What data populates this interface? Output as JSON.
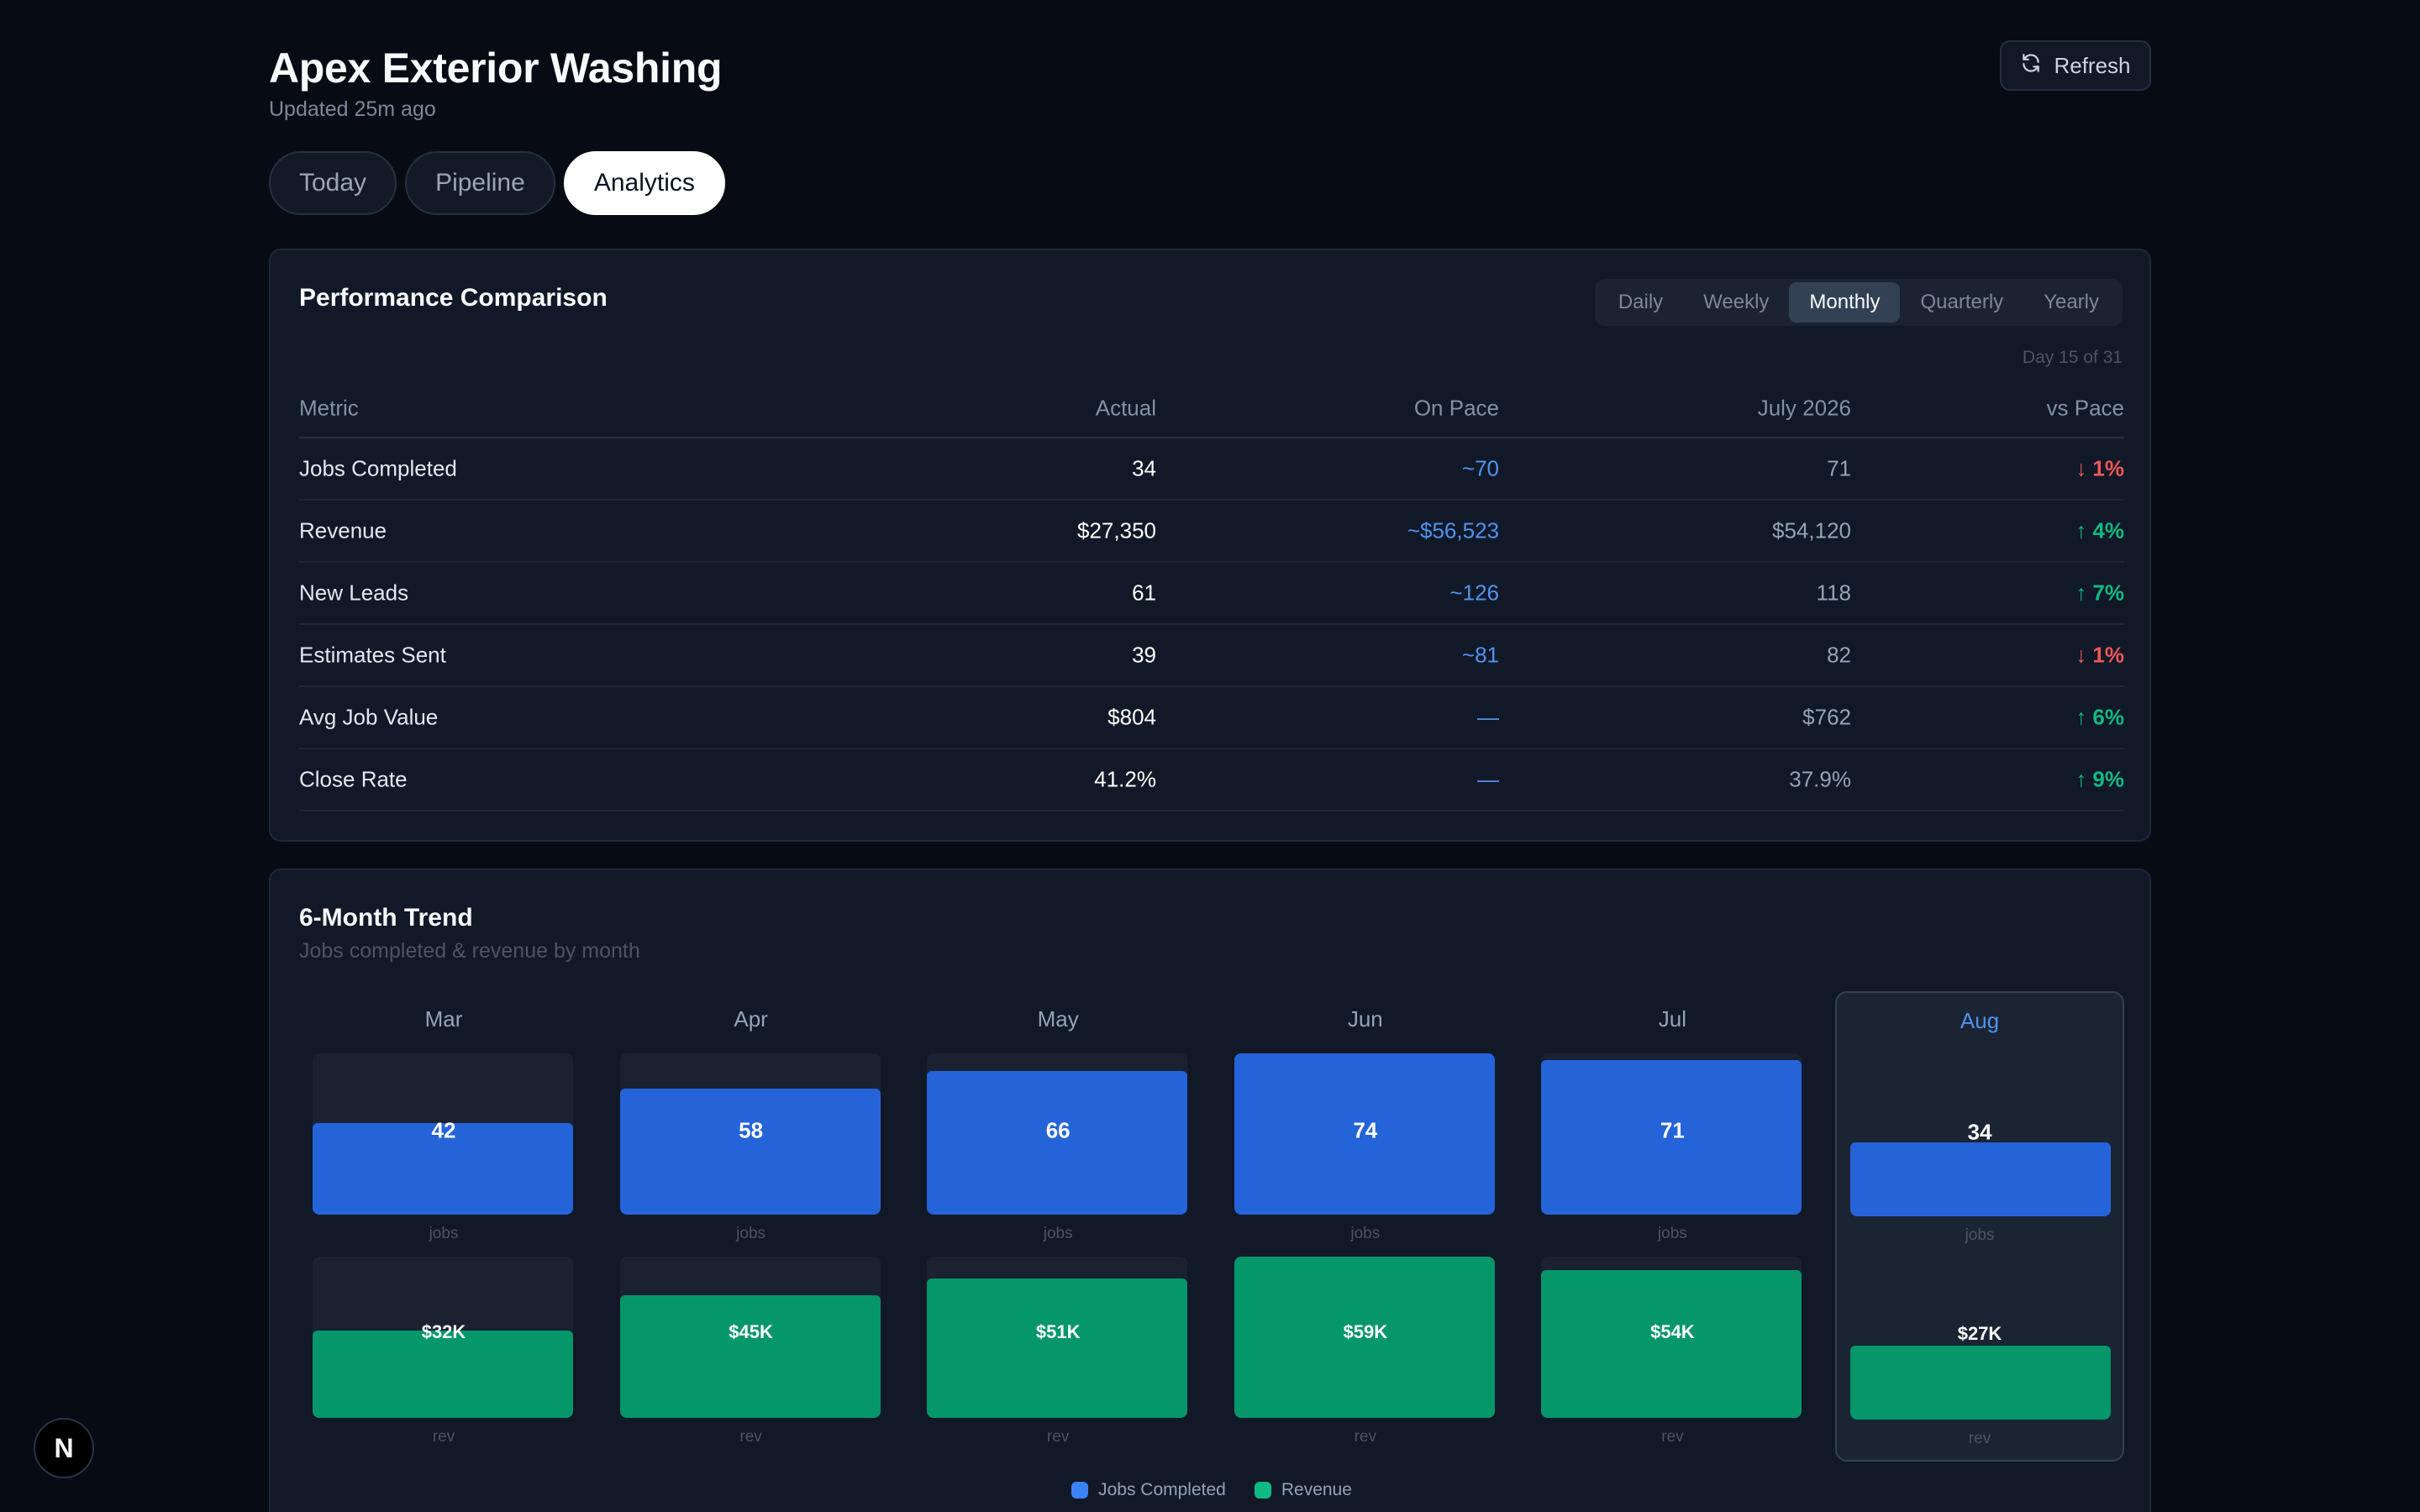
{
  "header": {
    "title": "Apex Exterior Washing",
    "updated": "Updated 25m ago",
    "refresh_label": "Refresh"
  },
  "tabs": [
    {
      "label": "Today",
      "active": false
    },
    {
      "label": "Pipeline",
      "active": false
    },
    {
      "label": "Analytics",
      "active": true
    }
  ],
  "performance": {
    "title": "Performance Comparison",
    "periods": [
      "Daily",
      "Weekly",
      "Monthly",
      "Quarterly",
      "Yearly"
    ],
    "selected_period": "Monthly",
    "day_label": "Day 15 of 31",
    "columns": [
      "Metric",
      "Actual",
      "On Pace",
      "July 2026",
      "vs Pace"
    ],
    "rows": [
      {
        "metric": "Jobs Completed",
        "actual": "34",
        "on_pace": "~70",
        "prior": "71",
        "vs_pace": "↓ 1%",
        "direction": "down"
      },
      {
        "metric": "Revenue",
        "actual": "$27,350",
        "on_pace": "~$56,523",
        "prior": "$54,120",
        "vs_pace": "↑ 4%",
        "direction": "up"
      },
      {
        "metric": "New Leads",
        "actual": "61",
        "on_pace": "~126",
        "prior": "118",
        "vs_pace": "↑ 7%",
        "direction": "up"
      },
      {
        "metric": "Estimates Sent",
        "actual": "39",
        "on_pace": "~81",
        "prior": "82",
        "vs_pace": "↓ 1%",
        "direction": "down"
      },
      {
        "metric": "Avg Job Value",
        "actual": "$804",
        "on_pace": "—",
        "prior": "$762",
        "vs_pace": "↑ 6%",
        "direction": "up"
      },
      {
        "metric": "Close Rate",
        "actual": "41.2%",
        "on_pace": "—",
        "prior": "37.9%",
        "vs_pace": "↑ 9%",
        "direction": "up"
      }
    ],
    "colors": {
      "up": "#10b981",
      "down": "#ef5757",
      "pace": "#4f93ee"
    }
  },
  "trend": {
    "title": "6-Month Trend",
    "subtitle": "Jobs completed & revenue by month",
    "jobs_unit": "jobs",
    "rev_unit": "rev",
    "current_month": "Aug",
    "legend": [
      {
        "label": "Jobs Completed",
        "color": "#3b82f6"
      },
      {
        "label": "Revenue",
        "color": "#10b981"
      }
    ]
  },
  "chart_data": {
    "type": "bar",
    "categories": [
      "Mar",
      "Apr",
      "May",
      "Jun",
      "Jul",
      "Aug"
    ],
    "series": [
      {
        "name": "Jobs Completed",
        "values": [
          42,
          58,
          66,
          74,
          71,
          34
        ],
        "labels": [
          "42",
          "58",
          "66",
          "74",
          "71",
          "34"
        ],
        "color": "#2563d9"
      },
      {
        "name": "Revenue",
        "values": [
          32,
          45,
          51,
          59,
          54,
          27
        ],
        "labels": [
          "$32K",
          "$45K",
          "$51K",
          "$59K",
          "$54K",
          "$27K"
        ],
        "unit": "$K",
        "color": "#059669"
      }
    ]
  },
  "badge": {
    "letter": "N"
  }
}
